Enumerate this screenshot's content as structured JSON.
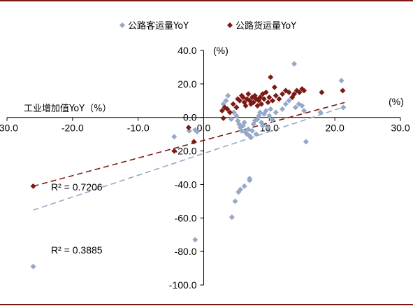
{
  "chart_data": {
    "type": "scatter",
    "xlim": [
      -30,
      30
    ],
    "ylim": [
      -100,
      40
    ],
    "x_ticks": [
      -30,
      -20,
      -10,
      0,
      10,
      20,
      30
    ],
    "y_ticks": [
      40,
      20,
      0,
      -20,
      -40,
      -60,
      -80,
      -100
    ],
    "x_tick_labels": [
      "-30.0",
      "-20.0",
      "-10.0",
      "0.0",
      "10.0",
      "20.0",
      "30.0"
    ],
    "y_tick_labels": [
      "40.0",
      "20.0",
      "0.0",
      "-20.0",
      "-40.0",
      "-60.0",
      "-80.0",
      "-100.0"
    ],
    "xlabel": "工业增加值YoY（%）",
    "x_unit": "(%)",
    "y_unit": "(%)",
    "grid": false,
    "legend_position": "top",
    "series": [
      {
        "name": "公路客运量YoY",
        "color": "#95A8C8",
        "marker": "diamond",
        "trendline": {
          "slope": 1.3,
          "intercept": -21.5,
          "x_range": [
            -26,
            21.5
          ],
          "r2_label": "R² = 0.3885"
        },
        "points": [
          [
            -26.0,
            -89.0
          ],
          [
            -1.3,
            -73.0
          ],
          [
            4.3,
            -59.5
          ],
          [
            4.8,
            -50.0
          ],
          [
            5.3,
            -44.5
          ],
          [
            5.6,
            -43.0
          ],
          [
            6.2,
            -41.0
          ],
          [
            7.0,
            -37.5
          ],
          [
            7.0,
            -36.5
          ],
          [
            -4.5,
            -11.5
          ],
          [
            -2.2,
            -8.0
          ],
          [
            -1.3,
            -7.5
          ],
          [
            -1.0,
            -8.5
          ],
          [
            3.0,
            8.0
          ],
          [
            3.4,
            10.0
          ],
          [
            3.7,
            13.0
          ],
          [
            4.2,
            -1.0
          ],
          [
            4.6,
            3.0
          ],
          [
            5.0,
            1.0
          ],
          [
            5.2,
            -2.0
          ],
          [
            5.4,
            -4.0
          ],
          [
            5.6,
            -6.0
          ],
          [
            5.8,
            -8.0
          ],
          [
            6.0,
            -5.0
          ],
          [
            6.2,
            -3.0
          ],
          [
            6.4,
            -9.0
          ],
          [
            6.6,
            -10.0
          ],
          [
            6.8,
            -7.0
          ],
          [
            7.0,
            -11.0
          ],
          [
            7.2,
            -12.0
          ],
          [
            7.4,
            -8.0
          ],
          [
            7.6,
            -4.0
          ],
          [
            7.8,
            -2.0
          ],
          [
            8.0,
            -10.0
          ],
          [
            8.2,
            -1.0
          ],
          [
            8.4,
            1.0
          ],
          [
            8.6,
            3.0
          ],
          [
            8.8,
            -3.0
          ],
          [
            9.0,
            -5.0
          ],
          [
            9.2,
            2.0
          ],
          [
            9.5,
            4.0
          ],
          [
            9.8,
            -6.0
          ],
          [
            10.0,
            1.0
          ],
          [
            10.2,
            5.0
          ],
          [
            10.5,
            -1.5
          ],
          [
            11.0,
            3.0
          ],
          [
            12.0,
            5.0
          ],
          [
            12.5,
            8.0
          ],
          [
            13.0,
            10.0
          ],
          [
            13.5,
            12.0
          ],
          [
            13.8,
            32.0
          ],
          [
            14.0,
            6.0
          ],
          [
            14.5,
            8.0
          ],
          [
            15.0,
            7.0
          ],
          [
            15.3,
            4.0
          ],
          [
            15.6,
            -14.5
          ],
          [
            17.8,
            3.0
          ],
          [
            21.3,
            6.0
          ],
          [
            21.0,
            22.0
          ]
        ]
      },
      {
        "name": "公路货运量YoY",
        "color": "#7B1A14",
        "marker": "diamond",
        "trendline": {
          "slope": 1.052,
          "intercept": -13.7,
          "x_range": [
            -26,
            21.5
          ],
          "r2_label": "R² = 0.7206"
        },
        "points": [
          [
            -26.0,
            -41.0
          ],
          [
            -4.5,
            -20.0
          ],
          [
            -1.5,
            -14.5
          ],
          [
            -2.3,
            -6.0
          ],
          [
            3.0,
            -0.5
          ],
          [
            2.8,
            4.0
          ],
          [
            3.2,
            6.0
          ],
          [
            3.6,
            5.0
          ],
          [
            4.0,
            3.0
          ],
          [
            4.5,
            8.0
          ],
          [
            5.0,
            6.0
          ],
          [
            5.2,
            11.0
          ],
          [
            5.5,
            10.0
          ],
          [
            5.8,
            13.0
          ],
          [
            6.0,
            12.0
          ],
          [
            6.2,
            9.0
          ],
          [
            6.4,
            7.0
          ],
          [
            6.6,
            11.0
          ],
          [
            6.8,
            14.0
          ],
          [
            7.0,
            10.0
          ],
          [
            7.2,
            8.0
          ],
          [
            7.4,
            12.0
          ],
          [
            7.6,
            9.0
          ],
          [
            7.8,
            13.0
          ],
          [
            8.0,
            11.0
          ],
          [
            8.2,
            7.0
          ],
          [
            8.4,
            10.0
          ],
          [
            8.6,
            12.0
          ],
          [
            8.8,
            8.0
          ],
          [
            9.0,
            14.0
          ],
          [
            9.2,
            11.0
          ],
          [
            9.5,
            15.0
          ],
          [
            9.8,
            9.0
          ],
          [
            10.0,
            12.0
          ],
          [
            10.2,
            24.0
          ],
          [
            10.5,
            10.0
          ],
          [
            10.8,
            18.0
          ],
          [
            11.0,
            13.0
          ],
          [
            11.5,
            11.0
          ],
          [
            12.0,
            14.0
          ],
          [
            12.5,
            16.0
          ],
          [
            13.0,
            15.0
          ],
          [
            13.5,
            12.0
          ],
          [
            13.8,
            14.0
          ],
          [
            14.2,
            16.0
          ],
          [
            14.6,
            15.0
          ],
          [
            15.0,
            17.0
          ],
          [
            15.3,
            16.0
          ],
          [
            18.0,
            15.0
          ],
          [
            21.2,
            16.0
          ]
        ]
      }
    ]
  }
}
